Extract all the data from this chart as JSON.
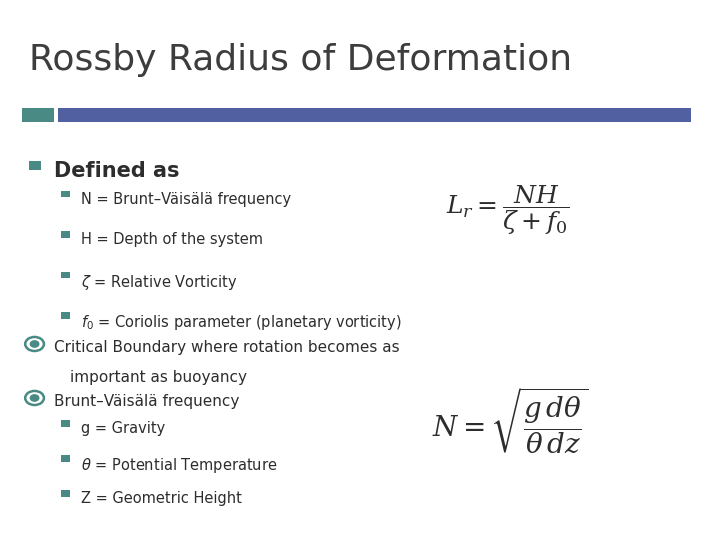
{
  "title": "Rossby Radius of Deformation",
  "title_fontsize": 26,
  "title_color": "#3d3d3d",
  "header_bar_color1": "#4a8a85",
  "header_bar_color2": "#5060a0",
  "bg_color": "#ffffff",
  "bullet_color": "#4a8a85",
  "text_color": "#2d2d2d",
  "eq1": "$L_r = \\dfrac{NH}{\\zeta + f_0}$",
  "eq2": "$N = \\sqrt{\\dfrac{g\\,d\\theta}{\\theta\\,dz}}$"
}
